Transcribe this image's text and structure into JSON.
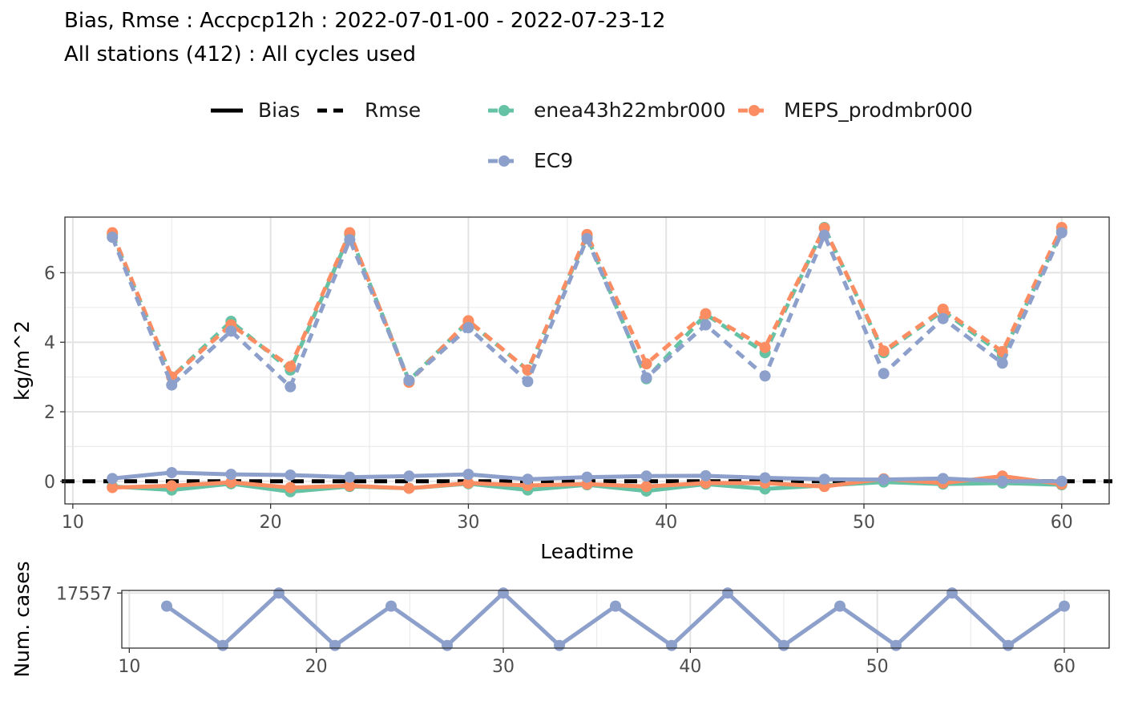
{
  "title": "Bias, Rmse : Accpcp12h : 2022-07-01-00 - 2022-07-23-12",
  "subtitle": "All stations (412) : All cycles used",
  "legend": {
    "linetypes": [
      {
        "label": "Bias",
        "dash": "solid"
      },
      {
        "label": "Rmse",
        "dash": "dashed"
      }
    ],
    "models": [
      {
        "label": "enea43h22mbr000",
        "color": "#66c2a5"
      },
      {
        "label": "MEPS_prodmbr000",
        "color": "#fc8d62"
      },
      {
        "label": "EC9",
        "color": "#8da0cb"
      }
    ]
  },
  "chart_data": [
    {
      "type": "line",
      "xlabel": "Leadtime",
      "ylabel": "kg/m^2",
      "xlim": [
        9.6,
        62.4
      ],
      "ylim": [
        -0.65,
        7.6
      ],
      "xticks": [
        10,
        20,
        30,
        40,
        50,
        60
      ],
      "yticks": [
        0,
        2,
        4,
        6
      ],
      "grid": true,
      "reference_line": {
        "y": 0,
        "style": "dashed",
        "color": "#000000"
      },
      "x": [
        12,
        15,
        18,
        21,
        24,
        27,
        30,
        33,
        36,
        39,
        42,
        45,
        48,
        51,
        54,
        57,
        60
      ],
      "series": [
        {
          "name": "enea43h22mbr000",
          "metric": "Rmse",
          "color": "#66c2a5",
          "dash": "dashed",
          "values": [
            7.1,
            3.0,
            4.6,
            3.2,
            7.1,
            2.9,
            4.6,
            3.2,
            7.05,
            2.95,
            4.8,
            3.7,
            7.3,
            3.7,
            4.9,
            3.65,
            7.2
          ]
        },
        {
          "name": "MEPS_prodmbr000",
          "metric": "Rmse",
          "color": "#fc8d62",
          "dash": "dashed",
          "values": [
            7.15,
            3.0,
            4.5,
            3.3,
            7.15,
            2.85,
            4.62,
            3.2,
            7.1,
            3.38,
            4.82,
            3.85,
            7.28,
            3.75,
            4.95,
            3.73,
            7.3
          ]
        },
        {
          "name": "EC9",
          "metric": "Rmse",
          "color": "#8da0cb",
          "dash": "dashed",
          "values": [
            7.02,
            2.77,
            4.32,
            2.72,
            6.95,
            2.9,
            4.42,
            2.87,
            6.98,
            2.98,
            4.5,
            3.03,
            7.08,
            3.1,
            4.68,
            3.4,
            7.15
          ]
        },
        {
          "name": "enea43h22mbr000",
          "metric": "Bias",
          "color": "#66c2a5",
          "dash": "solid",
          "values": [
            -0.15,
            -0.25,
            -0.07,
            -0.3,
            -0.15,
            -0.2,
            -0.07,
            -0.25,
            -0.1,
            -0.28,
            -0.08,
            -0.22,
            -0.12,
            -0.02,
            -0.08,
            -0.05,
            -0.1
          ]
        },
        {
          "name": "MEPS_prodmbr000",
          "metric": "Bias",
          "color": "#fc8d62",
          "dash": "solid",
          "values": [
            -0.18,
            -0.13,
            -0.03,
            -0.18,
            -0.13,
            -0.2,
            -0.05,
            -0.12,
            -0.08,
            -0.15,
            -0.05,
            -0.05,
            -0.15,
            0.07,
            -0.05,
            0.15,
            -0.08
          ]
        },
        {
          "name": "EC9",
          "metric": "Bias",
          "color": "#8da0cb",
          "dash": "solid",
          "values": [
            0.08,
            0.25,
            0.2,
            0.18,
            0.12,
            0.15,
            0.2,
            0.06,
            0.12,
            0.15,
            0.16,
            0.1,
            0.06,
            0.05,
            0.08,
            0.0,
            0.0
          ]
        }
      ]
    },
    {
      "type": "line",
      "xlabel": "",
      "ylabel": "Num. cases",
      "xlim": [
        9.6,
        62.4
      ],
      "ylim": [
        17552.8,
        17557.2
      ],
      "xticks": [
        10,
        20,
        30,
        40,
        50,
        60
      ],
      "yticks": [
        17557
      ],
      "grid": true,
      "x": [
        12,
        15,
        18,
        21,
        24,
        27,
        30,
        33,
        36,
        39,
        42,
        45,
        48,
        51,
        54,
        57,
        60
      ],
      "series": [
        {
          "name": "EC9",
          "color": "#8da0cb",
          "dash": "solid",
          "values": [
            17556,
            17553,
            17557,
            17553,
            17556,
            17553,
            17557,
            17553,
            17556,
            17553,
            17557,
            17553,
            17556,
            17553,
            17557,
            17553,
            17556
          ]
        }
      ]
    }
  ]
}
